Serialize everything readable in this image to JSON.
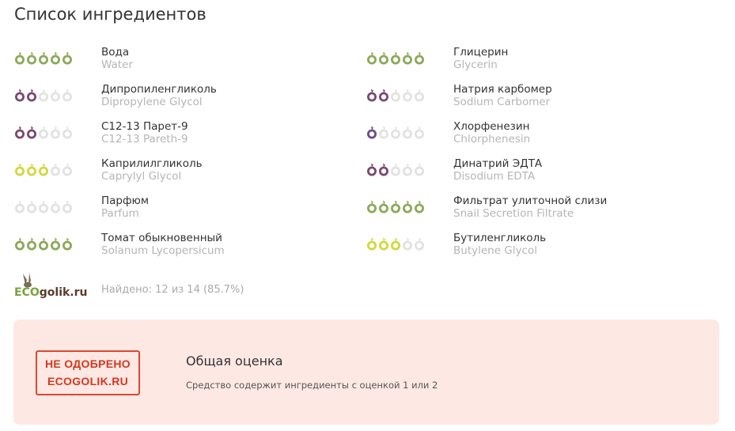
{
  "title": "Список ингредиентов",
  "colors": {
    "green": "#8ea85a",
    "purple": "#7b4870",
    "violet": "#6c4a8a",
    "yellow": "#d3d83c",
    "empty": "#e2e2e2",
    "alert": "#d4381e",
    "box_bg": "#fde8e4"
  },
  "ingredients_left": [
    {
      "ru": "Вода",
      "en": "Water",
      "rating": 5,
      "color": "green"
    },
    {
      "ru": "Дипропиленгликоль",
      "en": "Dipropylene Glycol",
      "rating": 2,
      "color": "purple"
    },
    {
      "ru": "C12-13 Парет-9",
      "en": "C12-13 Pareth-9",
      "rating": 2,
      "color": "purple"
    },
    {
      "ru": "Каприлилгликоль",
      "en": "Caprylyl Glycol",
      "rating": 3,
      "color": "yellow"
    },
    {
      "ru": "Парфюм",
      "en": "Parfum",
      "rating": 0,
      "color": "empty"
    },
    {
      "ru": "Томат обыкновенный",
      "en": "Solanum Lycopersicum",
      "rating": 5,
      "color": "green"
    }
  ],
  "ingredients_right": [
    {
      "ru": "Глицерин",
      "en": "Glycerin",
      "rating": 5,
      "color": "green"
    },
    {
      "ru": "Натрия карбомер",
      "en": "Sodium Carbomer",
      "rating": 2,
      "color": "purple"
    },
    {
      "ru": "Хлорфенезин",
      "en": "Chlorphenesin",
      "rating": 1,
      "color": "violet"
    },
    {
      "ru": "Динатрий ЭДТА",
      "en": "Disodium EDTA",
      "rating": 2,
      "color": "purple"
    },
    {
      "ru": "Фильтрат улиточной слизи",
      "en": "Snail Secretion Filtrate",
      "rating": 5,
      "color": "green"
    },
    {
      "ru": "Бутиленгликоль",
      "en": "Butylene Glycol",
      "rating": 3,
      "color": "yellow"
    }
  ],
  "logo": {
    "eco": "ECO",
    "golik": "golik.ru"
  },
  "found": "Найдено: 12 из 14 (85.7%)",
  "summary": {
    "badge_line1": "НЕ ОДОБРЕНО",
    "badge_line2": "ECOGOLIK.RU",
    "title": "Общая оценка",
    "text": "Средство содержит ингредиенты с оценкой 1 или 2"
  }
}
